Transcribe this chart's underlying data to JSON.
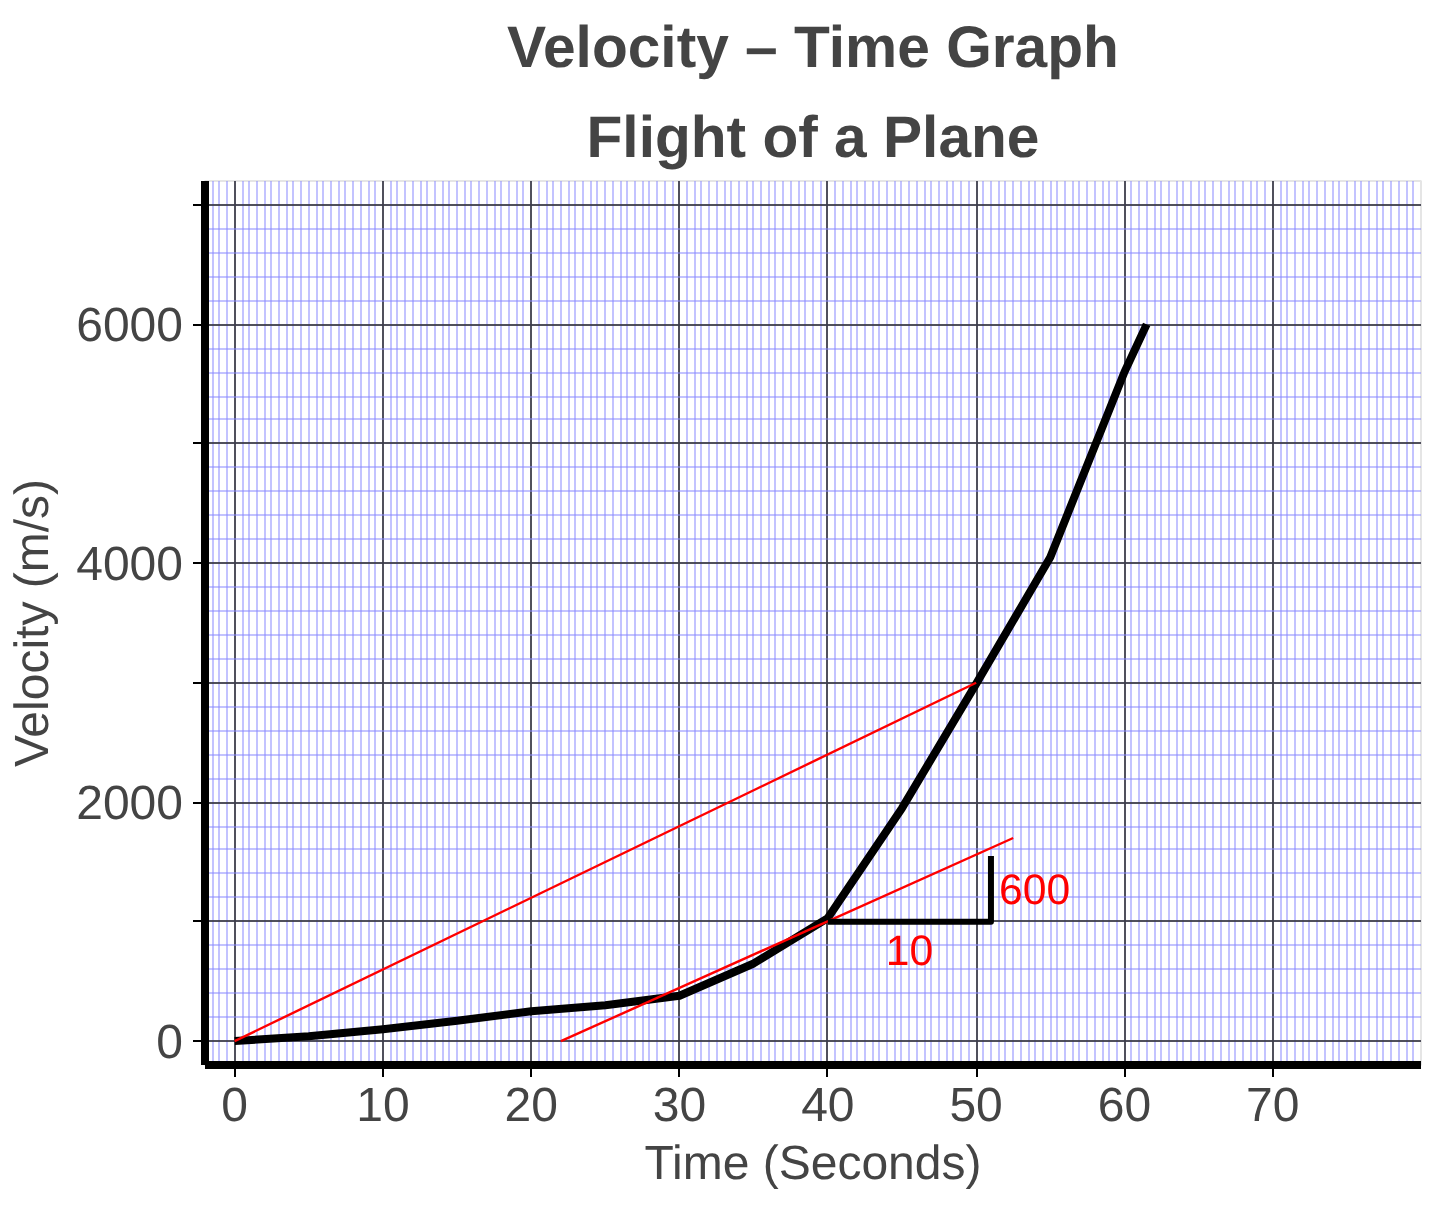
{
  "chart_data": {
    "type": "line",
    "title": "Velocity – Time Graph",
    "subtitle": "Flight of a Plane",
    "xlabel": "Time (Seconds)",
    "ylabel": "Velocity (m/s)",
    "x": [
      0,
      5,
      10,
      15,
      20,
      25,
      30,
      35,
      40,
      45,
      50,
      55,
      60,
      61.5
    ],
    "series": [
      {
        "color": "#000000",
        "values": [
          0,
          40,
          100,
          170,
          250,
          300,
          380,
          650,
          1030,
          1950,
          2990,
          4050,
          5600,
          6000
        ]
      },
      {
        "color": "#ff0000",
        "x": [
          0,
          50
        ],
        "values": [
          0,
          3000
        ]
      },
      {
        "color": "#ff0000",
        "x": [
          22,
          52.5
        ],
        "values": [
          0,
          1700
        ]
      },
      {
        "color": "#000000",
        "x": [
          40,
          51,
          51
        ],
        "values": [
          1000,
          1000,
          1550
        ]
      }
    ],
    "annotations": [
      "10",
      "600"
    ],
    "xlim": [
      -2,
      80
    ],
    "ylim": [
      -200,
      7200
    ],
    "xticks": [
      0,
      10,
      20,
      30,
      40,
      50,
      60,
      70
    ],
    "yticks": [
      0,
      {
        "value": 1000,
        "label": null
      },
      2000,
      {
        "value": 3000,
        "label": null
      },
      4000,
      {
        "value": 5000,
        "label": null
      },
      6000,
      {
        "value": 7000,
        "label": null
      }
    ],
    "grid": true,
    "marker": "none",
    "line_style": "solid"
  }
}
